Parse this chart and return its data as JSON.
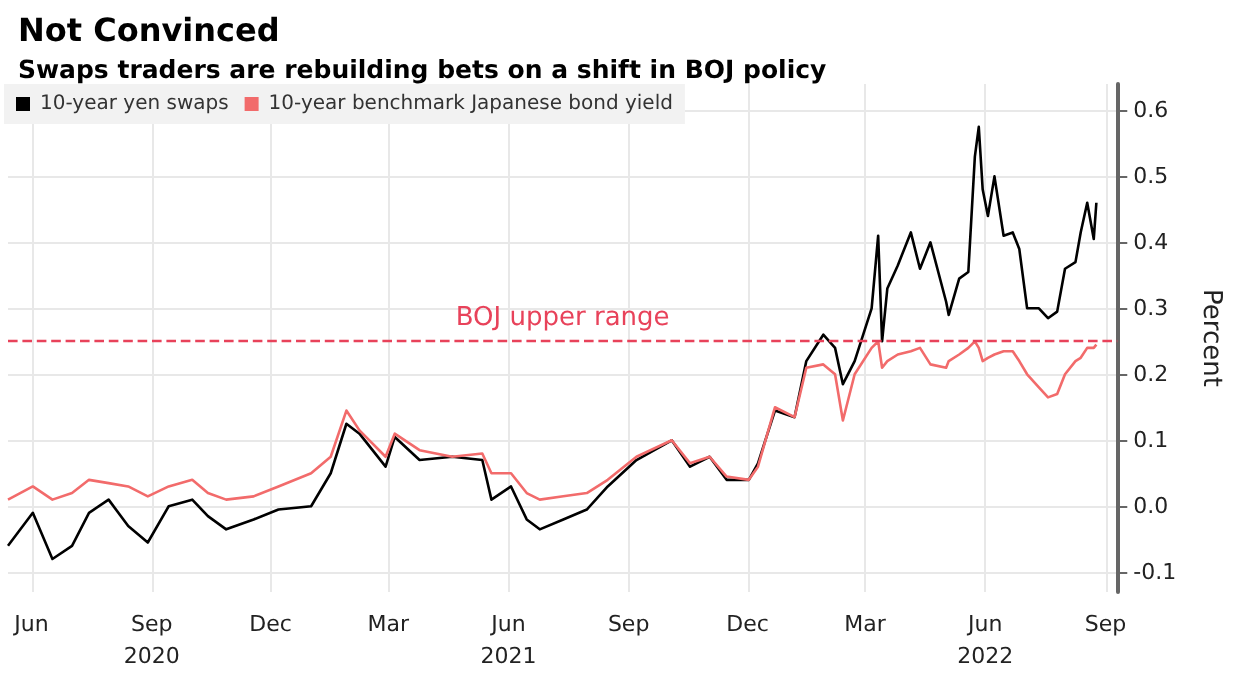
{
  "chart_data": {
    "type": "line",
    "title": "Not Convinced",
    "subtitle": "Swaps traders are rebuilding bets on a shift in BOJ policy",
    "ylabel": "Percent",
    "x": [
      "2020-05-14",
      "2020-06-02",
      "2020-06-17",
      "2020-07-02",
      "2020-07-15",
      "2020-07-30",
      "2020-08-14",
      "2020-08-29",
      "2020-09-14",
      "2020-10-02",
      "2020-10-14",
      "2020-10-28",
      "2020-11-18",
      "2020-12-07",
      "2021-01-01",
      "2021-01-16",
      "2021-01-28",
      "2021-02-07",
      "2021-02-27",
      "2021-03-06",
      "2021-03-25",
      "2021-04-19",
      "2021-05-12",
      "2021-05-19",
      "2021-06-03",
      "2021-06-15",
      "2021-06-25",
      "2021-07-13",
      "2021-07-31",
      "2021-08-16",
      "2021-09-07",
      "2021-10-04",
      "2021-10-18",
      "2021-11-02",
      "2021-11-15",
      "2021-12-02",
      "2021-12-09",
      "2021-12-22",
      "2022-01-06",
      "2022-01-15",
      "2022-01-28",
      "2022-02-06",
      "2022-02-12",
      "2022-02-21",
      "2022-03-06",
      "2022-03-11",
      "2022-03-14",
      "2022-03-18",
      "2022-03-26",
      "2022-04-05",
      "2022-04-12",
      "2022-04-20",
      "2022-05-02",
      "2022-05-04",
      "2022-05-12",
      "2022-05-19",
      "2022-05-24",
      "2022-05-27",
      "2022-05-30",
      "2022-06-03",
      "2022-06-08",
      "2022-06-15",
      "2022-06-22",
      "2022-06-27",
      "2022-07-03",
      "2022-07-12",
      "2022-07-19",
      "2022-07-26",
      "2022-08-01",
      "2022-08-09",
      "2022-08-13",
      "2022-08-18",
      "2022-08-23",
      "2022-08-25"
    ],
    "series": [
      {
        "name": "10-year yen swaps",
        "color": "#000000",
        "values": [
          -0.06,
          -0.01,
          -0.08,
          -0.06,
          -0.01,
          0.01,
          -0.03,
          -0.055,
          0.0,
          0.01,
          -0.015,
          -0.035,
          -0.02,
          -0.005,
          0.0,
          0.05,
          0.125,
          0.11,
          0.06,
          0.105,
          0.07,
          0.075,
          0.07,
          0.01,
          0.03,
          -0.02,
          -0.035,
          -0.02,
          -0.005,
          0.03,
          0.07,
          0.1,
          0.06,
          0.075,
          0.04,
          0.04,
          0.065,
          0.145,
          0.135,
          0.22,
          0.26,
          0.24,
          0.185,
          0.22,
          0.3,
          0.41,
          0.25,
          0.33,
          0.365,
          0.415,
          0.36,
          0.4,
          0.31,
          0.29,
          0.345,
          0.355,
          0.53,
          0.575,
          0.48,
          0.44,
          0.5,
          0.41,
          0.415,
          0.39,
          0.3,
          0.3,
          0.285,
          0.295,
          0.36,
          0.37,
          0.415,
          0.46,
          0.405,
          0.46
        ]
      },
      {
        "name": "10-year benchmark Japanese bond yield",
        "color": "#f26b6b",
        "values": [
          0.01,
          0.03,
          0.01,
          0.02,
          0.04,
          0.035,
          0.03,
          0.015,
          0.03,
          0.04,
          0.02,
          0.01,
          0.015,
          0.03,
          0.05,
          0.075,
          0.145,
          0.115,
          0.075,
          0.11,
          0.085,
          0.075,
          0.08,
          0.05,
          0.05,
          0.02,
          0.01,
          0.015,
          0.02,
          0.04,
          0.075,
          0.1,
          0.065,
          0.075,
          0.045,
          0.04,
          0.06,
          0.15,
          0.135,
          0.21,
          0.215,
          0.2,
          0.13,
          0.2,
          0.24,
          0.25,
          0.21,
          0.22,
          0.23,
          0.235,
          0.24,
          0.215,
          0.21,
          0.22,
          0.23,
          0.24,
          0.25,
          0.24,
          0.22,
          0.225,
          0.23,
          0.235,
          0.235,
          0.22,
          0.2,
          0.18,
          0.165,
          0.17,
          0.2,
          0.22,
          0.225,
          0.24,
          0.24,
          0.245
        ]
      }
    ],
    "xlim": [
      "2020-05-14",
      "2022-09-10"
    ],
    "xticks": [
      {
        "value": "2020-06",
        "label": "Jun"
      },
      {
        "value": "2020-09",
        "label": "Sep\n2020"
      },
      {
        "value": "2020-12",
        "label": "Dec"
      },
      {
        "value": "2021-03",
        "label": "Mar"
      },
      {
        "value": "2021-06",
        "label": "Jun\n2021"
      },
      {
        "value": "2021-09",
        "label": "Sep"
      },
      {
        "value": "2021-12",
        "label": "Dec"
      },
      {
        "value": "2022-03",
        "label": "Mar"
      },
      {
        "value": "2022-06",
        "label": "Jun\n2022"
      },
      {
        "value": "2022-09",
        "label": "Sep"
      }
    ],
    "ylim": [
      -0.13,
      0.64
    ],
    "yticks": [
      {
        "value": -0.1,
        "label": "-0.1"
      },
      {
        "value": 0,
        "label": "0.0"
      },
      0.1,
      0.2,
      0.3,
      0.4,
      0.5,
      0.6
    ],
    "ref_lines": [
      {
        "axis": "y",
        "value": 0.25,
        "label": "BOJ upper range",
        "color": "#e8425a",
        "line_style": "dashed"
      }
    ],
    "grid": true,
    "legend": "top left"
  }
}
